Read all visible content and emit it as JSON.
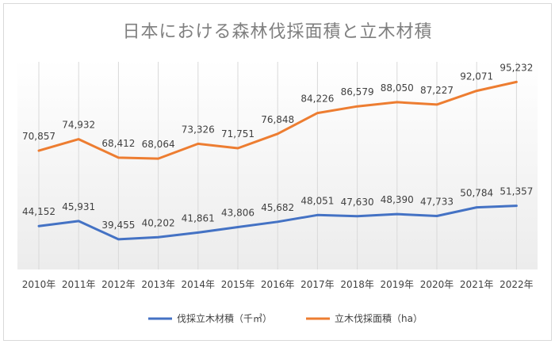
{
  "chart_data": {
    "type": "line",
    "title": "日本における森林伐採面積と立木材積",
    "categories": [
      "2010年",
      "2011年",
      "2012年",
      "2013年",
      "2014年",
      "2015年",
      "2016年",
      "2017年",
      "2018年",
      "2019年",
      "2020年",
      "2021年",
      "2022年"
    ],
    "series": [
      {
        "name": "伐採立木材積（千㎥）",
        "color": "#4472c4",
        "values": [
          44152,
          45931,
          39455,
          40202,
          41861,
          43806,
          45682,
          48051,
          47630,
          48390,
          47733,
          50784,
          51357
        ],
        "labels": [
          "44,152",
          "45,931",
          "39,455",
          "40,202",
          "41,861",
          "43,806",
          "45,682",
          "48,051",
          "47,630",
          "48,390",
          "47,733",
          "50,784",
          "51,357"
        ]
      },
      {
        "name": "立木伐採面積（ha）",
        "color": "#ed7d31",
        "values": [
          70857,
          74932,
          68412,
          68064,
          73326,
          71751,
          76848,
          84226,
          86579,
          88050,
          87227,
          92071,
          95232
        ],
        "labels": [
          "70,857",
          "74,932",
          "68,412",
          "68,064",
          "73,326",
          "71,751",
          "76,848",
          "84,226",
          "86,579",
          "88,050",
          "87,227",
          "92,071",
          "95,232"
        ]
      }
    ],
    "legend_position": "bottom",
    "vertical_gridlines": true
  }
}
